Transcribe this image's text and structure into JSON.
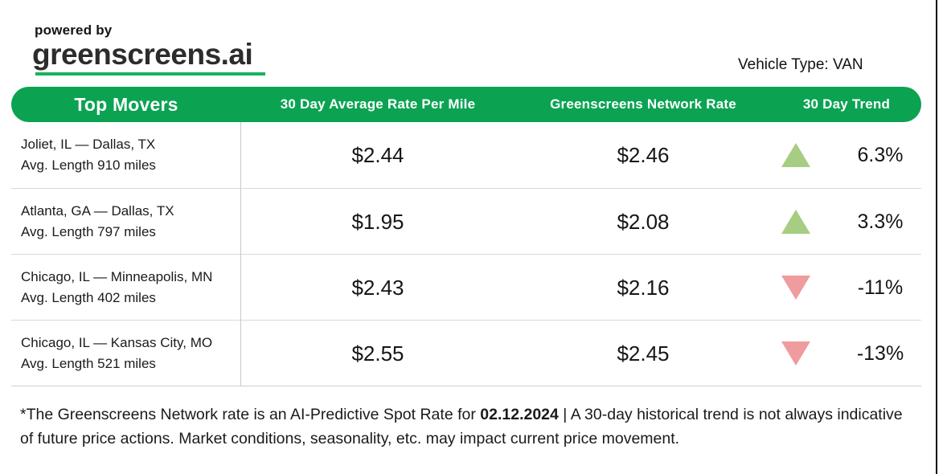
{
  "brand": {
    "powered_by": "powered by",
    "name": "greenscreens.ai"
  },
  "vehicle_type_label": "Vehicle Type: VAN",
  "table": {
    "headers": [
      "Top Movers",
      "30 Day Average Rate Per Mile",
      "Greenscreens Network Rate",
      "30 Day Trend"
    ]
  },
  "rows": [
    {
      "route": "Joliet, IL — Dallas, TX",
      "length": "Avg. Length 910 miles",
      "avg_rate": "$2.44",
      "network_rate": "$2.46",
      "trend": {
        "direction": "up",
        "value": "6.3%"
      }
    },
    {
      "route": "Atlanta, GA — Dallas, TX",
      "length": "Avg. Length 797 miles",
      "avg_rate": "$1.95",
      "network_rate": "$2.08",
      "trend": {
        "direction": "up",
        "value": "3.3%"
      }
    },
    {
      "route": "Chicago, IL — Minneapolis, MN",
      "length": "Avg. Length 402 miles",
      "avg_rate": "$2.43",
      "network_rate": "$2.16",
      "trend": {
        "direction": "down",
        "value": "-11%"
      }
    },
    {
      "route": "Chicago, IL — Kansas City, MO",
      "length": "Avg. Length 521 miles",
      "avg_rate": "$2.55",
      "network_rate": "$2.45",
      "trend": {
        "direction": "down",
        "value": "-13%"
      }
    }
  ],
  "footnote": {
    "part1": "*The Greenscreens Network rate is an AI-Predictive Spot Rate for ",
    "date": "02.12.2024",
    "part2": " | A 30-day historical trend is not always indicative of future price actions. Market conditions, seasonality, etc. may impact current price movement."
  },
  "colors": {
    "header_green": "#0ba352",
    "underline_green": "#16b45a",
    "trend_up": "#a6cd82",
    "trend_down": "#f09b9d",
    "text": "#1f1f1f"
  },
  "chart_data": {
    "type": "table",
    "title": "Top Movers",
    "vehicle_type": "VAN",
    "columns": [
      "Top Movers",
      "30 Day Average Rate Per Mile",
      "Greenscreens Network Rate",
      "30 Day Trend"
    ],
    "rows": [
      {
        "lane": "Joliet, IL — Dallas, TX",
        "avg_length_miles": 910,
        "avg_rate_per_mile": 2.44,
        "network_rate": 2.46,
        "trend_pct": 6.3
      },
      {
        "lane": "Atlanta, GA — Dallas, TX",
        "avg_length_miles": 797,
        "avg_rate_per_mile": 1.95,
        "network_rate": 2.08,
        "trend_pct": 3.3
      },
      {
        "lane": "Chicago, IL — Minneapolis, MN",
        "avg_length_miles": 402,
        "avg_rate_per_mile": 2.43,
        "network_rate": 2.16,
        "trend_pct": -11
      },
      {
        "lane": "Chicago, IL — Kansas City, MO",
        "avg_length_miles": 521,
        "avg_rate_per_mile": 2.55,
        "network_rate": 2.45,
        "trend_pct": -13
      }
    ],
    "as_of_date": "02.12.2024"
  }
}
